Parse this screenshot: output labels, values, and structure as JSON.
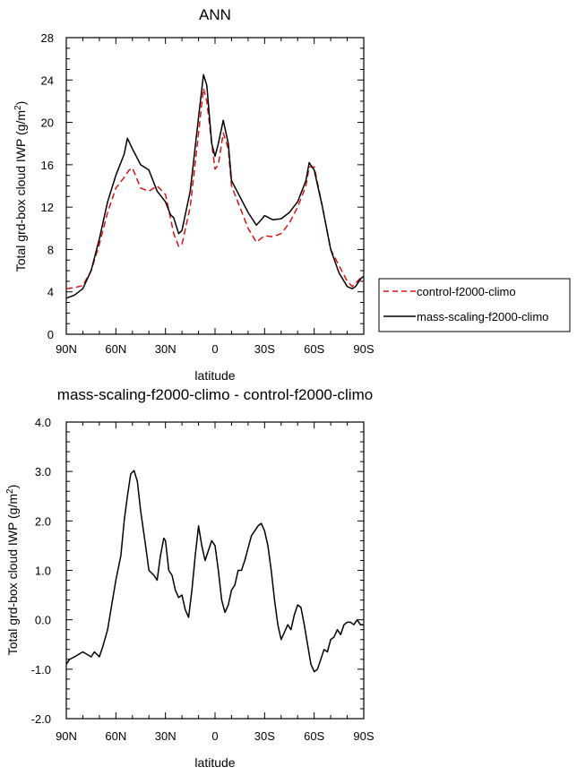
{
  "chart_data": [
    {
      "type": "line",
      "title": "ANN",
      "xlabel": "latitude",
      "ylabel": "Total grd-box cloud IWP (g/m",
      "ylabel_sup": "2",
      "ylabel_close": ")",
      "xlim": [
        90,
        -90
      ],
      "ylim": [
        0,
        28
      ],
      "x_ticks": [
        90,
        60,
        30,
        0,
        -30,
        -60,
        -90
      ],
      "x_tick_labels": [
        "90N",
        "60N",
        "30N",
        "0",
        "30S",
        "60S",
        "90S"
      ],
      "y_ticks": [
        0,
        4,
        8,
        12,
        16,
        20,
        24,
        28
      ],
      "y_tick_labels": [
        "0",
        "4",
        "8",
        "12",
        "16",
        "20",
        "24",
        "28"
      ],
      "legend": {
        "placement": "right",
        "entries": [
          "control-f2000-climo",
          "mass-scaling-f2000-climo"
        ]
      },
      "series": [
        {
          "name": "control-f2000-climo",
          "color": "#dd1111",
          "dash": "dashed",
          "x": [
            90,
            85,
            80,
            75,
            70,
            65,
            60,
            55,
            52,
            50,
            45,
            40,
            35,
            30,
            27,
            25,
            22,
            20,
            15,
            10,
            7,
            5,
            2,
            0,
            -2,
            -5,
            -8,
            -10,
            -15,
            -20,
            -25,
            -30,
            -35,
            -40,
            -45,
            -50,
            -55,
            -57,
            -60,
            -65,
            -70,
            -75,
            -80,
            -83,
            -85,
            -88,
            -90
          ],
          "values": [
            4.3,
            4.4,
            4.6,
            6.0,
            8.5,
            11.5,
            13.8,
            14.8,
            15.5,
            15.7,
            13.8,
            13.5,
            14.0,
            13.2,
            11.0,
            9.5,
            8.3,
            8.5,
            12.0,
            19.0,
            23.2,
            22.0,
            18.0,
            15.6,
            16.0,
            19.0,
            17.5,
            14.0,
            12.0,
            10.0,
            8.7,
            9.3,
            9.2,
            9.5,
            10.5,
            12.0,
            14.0,
            15.8,
            15.8,
            12.0,
            8.0,
            6.5,
            5.0,
            4.5,
            4.8,
            5.3,
            5.5
          ]
        },
        {
          "name": "mass-scaling-f2000-climo",
          "color": "#000000",
          "dash": "solid",
          "x": [
            90,
            85,
            80,
            75,
            70,
            65,
            60,
            55,
            53,
            50,
            45,
            40,
            35,
            30,
            27,
            25,
            22,
            20,
            15,
            10,
            7,
            5,
            2,
            0,
            -2,
            -5,
            -8,
            -10,
            -15,
            -20,
            -25,
            -28,
            -30,
            -35,
            -40,
            -45,
            -50,
            -55,
            -57,
            -60,
            -65,
            -70,
            -75,
            -80,
            -83,
            -85,
            -88,
            -90
          ],
          "values": [
            3.4,
            3.7,
            4.3,
            6.0,
            9.0,
            12.5,
            15.0,
            17.0,
            18.5,
            17.5,
            16.0,
            15.5,
            13.5,
            12.5,
            11.3,
            11.0,
            9.5,
            9.8,
            13.5,
            20.5,
            24.5,
            23.5,
            18.0,
            16.8,
            18.0,
            20.2,
            18.0,
            14.5,
            13.0,
            11.5,
            10.3,
            10.8,
            11.2,
            10.8,
            10.9,
            11.5,
            12.5,
            14.5,
            16.2,
            15.5,
            12.0,
            8.0,
            5.8,
            4.5,
            4.3,
            4.5,
            5.2,
            5.5
          ]
        }
      ]
    },
    {
      "type": "line",
      "title": "mass-scaling-f2000-climo - control-f2000-climo",
      "xlabel": "latitude",
      "ylabel": "Total grd-box cloud IWP (g/m",
      "ylabel_sup": "2",
      "ylabel_close": ")",
      "xlim": [
        90,
        -90
      ],
      "ylim": [
        -2.0,
        4.0
      ],
      "x_ticks": [
        90,
        60,
        30,
        0,
        -30,
        -60,
        -90
      ],
      "x_tick_labels": [
        "90N",
        "60N",
        "30N",
        "0",
        "30S",
        "60S",
        "90S"
      ],
      "y_ticks": [
        -2.0,
        -1.0,
        0.0,
        1.0,
        2.0,
        3.0,
        4.0
      ],
      "y_tick_labels": [
        "-2.0",
        "-1.0",
        "0.0",
        "1.0",
        "2.0",
        "3.0",
        "4.0"
      ],
      "series": [
        {
          "name": "mass-scaling-f2000-climo - control-f2000-climo",
          "color": "#000000",
          "dash": "solid",
          "x": [
            90,
            88,
            85,
            80,
            75,
            73,
            70,
            68,
            65,
            62,
            60,
            57,
            55,
            53,
            51,
            49,
            47,
            45,
            42,
            40,
            37,
            35,
            33,
            31,
            30,
            28,
            26,
            24,
            22,
            20,
            18,
            16,
            14,
            12,
            10,
            8,
            6,
            4,
            2,
            0,
            -2,
            -4,
            -6,
            -8,
            -10,
            -12,
            -14,
            -16,
            -18,
            -20,
            -22,
            -24,
            -26,
            -28,
            -30,
            -32,
            -34,
            -36,
            -38,
            -40,
            -42,
            -44,
            -46,
            -48,
            -50,
            -52,
            -54,
            -56,
            -58,
            -60,
            -62,
            -64,
            -66,
            -68,
            -70,
            -72,
            -74,
            -76,
            -78,
            -80,
            -82,
            -84,
            -86,
            -88,
            -90
          ],
          "values": [
            -0.9,
            -0.8,
            -0.75,
            -0.65,
            -0.75,
            -0.65,
            -0.75,
            -0.55,
            -0.2,
            0.4,
            0.8,
            1.3,
            2.0,
            2.5,
            2.95,
            3.02,
            2.8,
            2.2,
            1.5,
            1.0,
            0.9,
            0.8,
            1.3,
            1.65,
            1.6,
            1.0,
            0.9,
            0.6,
            0.45,
            0.5,
            0.2,
            0.05,
            0.6,
            1.3,
            1.9,
            1.5,
            1.2,
            1.4,
            1.6,
            1.5,
            1.0,
            0.4,
            0.15,
            0.3,
            0.6,
            0.7,
            1.0,
            1.0,
            1.2,
            1.45,
            1.7,
            1.8,
            1.9,
            1.95,
            1.8,
            1.5,
            1.0,
            0.4,
            -0.1,
            -0.4,
            -0.25,
            -0.1,
            -0.2,
            0.1,
            0.3,
            0.25,
            -0.1,
            -0.5,
            -0.9,
            -1.05,
            -1.0,
            -0.8,
            -0.6,
            -0.65,
            -0.4,
            -0.35,
            -0.2,
            -0.3,
            -0.1,
            -0.05,
            -0.05,
            -0.1,
            0.0,
            -0.1,
            -0.1
          ]
        }
      ]
    }
  ]
}
